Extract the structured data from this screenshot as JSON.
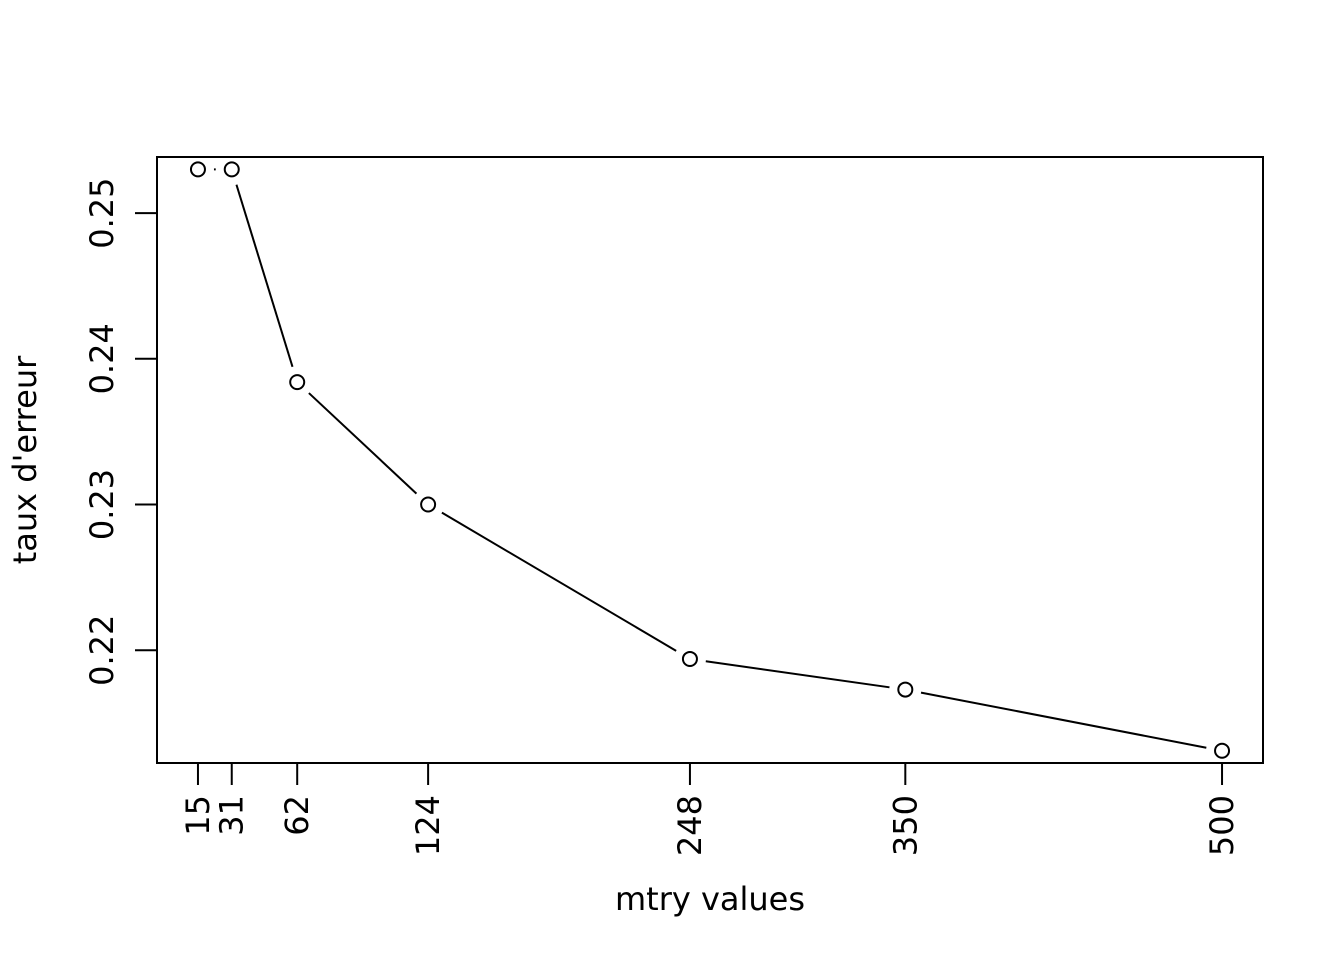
{
  "chart_data": {
    "type": "line",
    "title": "",
    "xlabel": "mtry values",
    "ylabel": "taux d'erreur",
    "x": [
      15,
      31,
      62,
      124,
      248,
      350,
      500
    ],
    "y": [
      0.253,
      0.253,
      0.2384,
      0.23,
      0.2194,
      0.2173,
      0.2131
    ],
    "x_ticks": [
      15,
      31,
      62,
      124,
      248,
      350,
      500
    ],
    "x_tick_labels": [
      "15",
      "31",
      "62",
      "124",
      "248",
      "350",
      "500"
    ],
    "y_ticks": [
      0.22,
      0.23,
      0.24,
      0.25
    ],
    "y_tick_labels": [
      "0.22",
      "0.23",
      "0.24",
      "0.25"
    ],
    "xlim": [
      -4.4,
      519.4
    ],
    "ylim": [
      0.21226,
      0.25385
    ],
    "marker": "open-circle",
    "line_style": "solid-with-gaps",
    "grid": false,
    "colors": {
      "line": "#000000",
      "marker": "#000000",
      "background": "#ffffff"
    }
  }
}
